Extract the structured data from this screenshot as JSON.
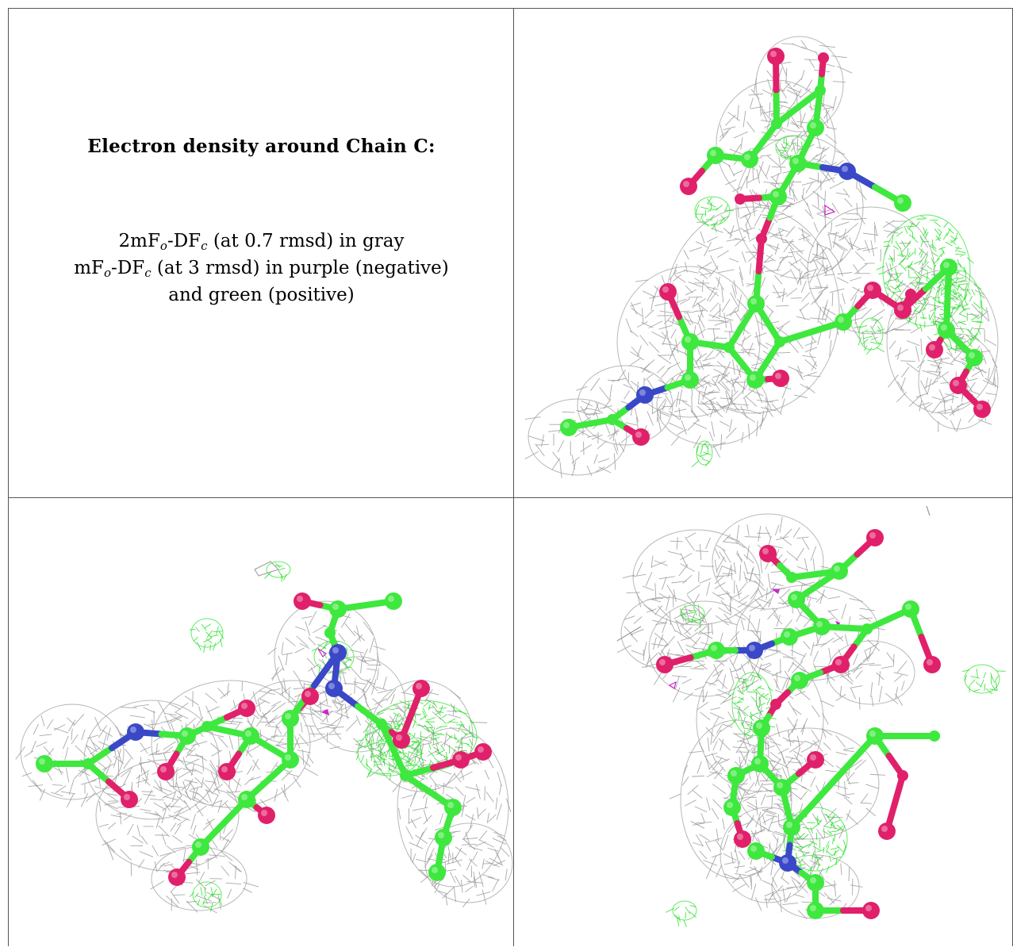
{
  "heading": "Electron density around Chain C:",
  "legend": {
    "line1": {
      "prefix": "2mF",
      "sub1": "o",
      "mid": "-DF",
      "sub2": "c",
      "suffix": " (at 0.7 rmsd) in gray"
    },
    "line2": {
      "prefix": "mF",
      "sub1": "o",
      "mid": "-DF",
      "sub2": "c",
      "suffix": " (at 3 rmsd) in purple (negative)"
    },
    "line3": "and green (positive)"
  },
  "colors": {
    "mesh_gray": "#9a9a9a",
    "positive_green": "#22e022",
    "negative_purple": "#d020d0",
    "carbon": "#3ee83e",
    "oxygen": "#e0206a",
    "nitrogen": "#3a48c8"
  },
  "views": [
    "view-1",
    "view-2",
    "view-3"
  ]
}
